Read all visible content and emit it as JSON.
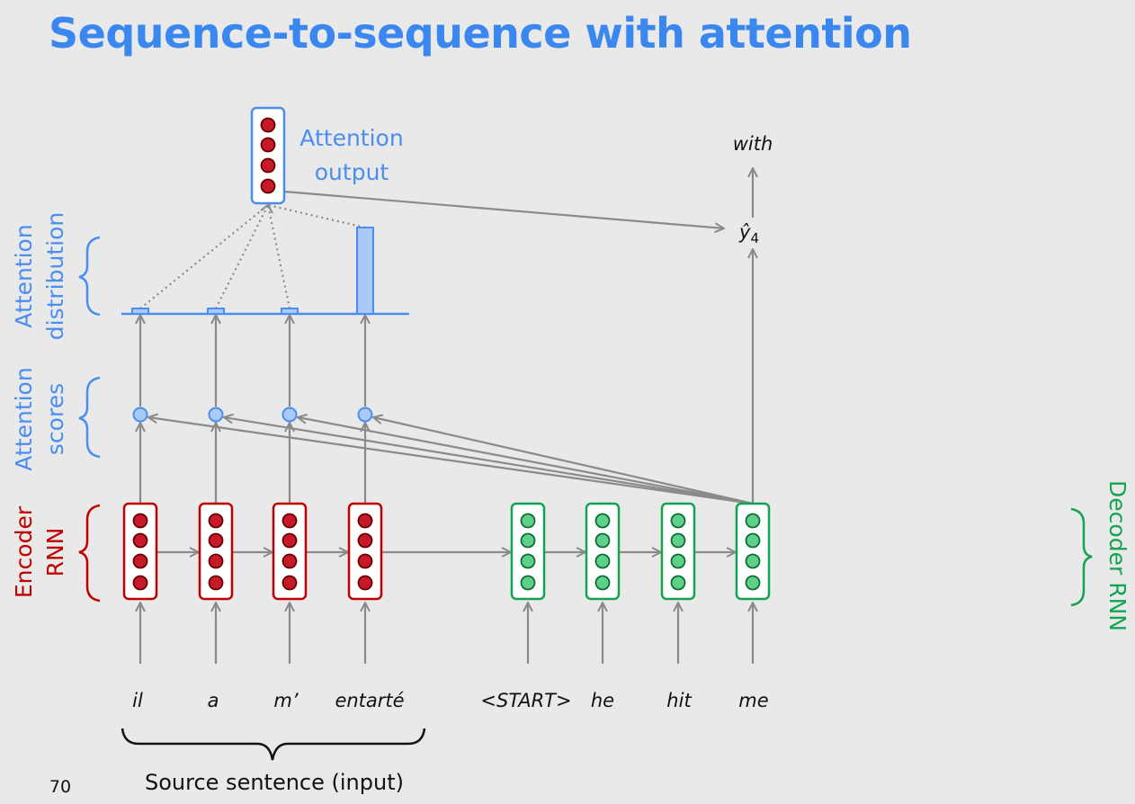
{
  "title": "Sequence-to-sequence with attention",
  "page_number": "70",
  "source_words": [
    "il",
    "a",
    "m’",
    "entarté"
  ],
  "target_words": [
    "<START>",
    "he",
    "hit",
    "me"
  ],
  "output_word": "with",
  "prediction_label": "ŷ",
  "prediction_subscript": "4",
  "labels": {
    "attention_output_line1": "Attention",
    "attention_output_line2": "output",
    "attention_distribution_line1": "Attention",
    "attention_distribution_line2": "distribution",
    "attention_scores_line1": "Attention",
    "attention_scores_line2": "scores",
    "encoder_line1": "Encoder",
    "encoder_line2": "RNN",
    "decoder": "Decoder RNN",
    "source_caption": "Source sentence (input)"
  },
  "attention_distribution": [
    0.05,
    0.05,
    0.05,
    0.85
  ],
  "colors": {
    "title": "#3b87f0",
    "attention": "#4a8ef0",
    "encoder": "#c00000",
    "decoder": "#13a452",
    "arrow": "#8a8a8a"
  }
}
